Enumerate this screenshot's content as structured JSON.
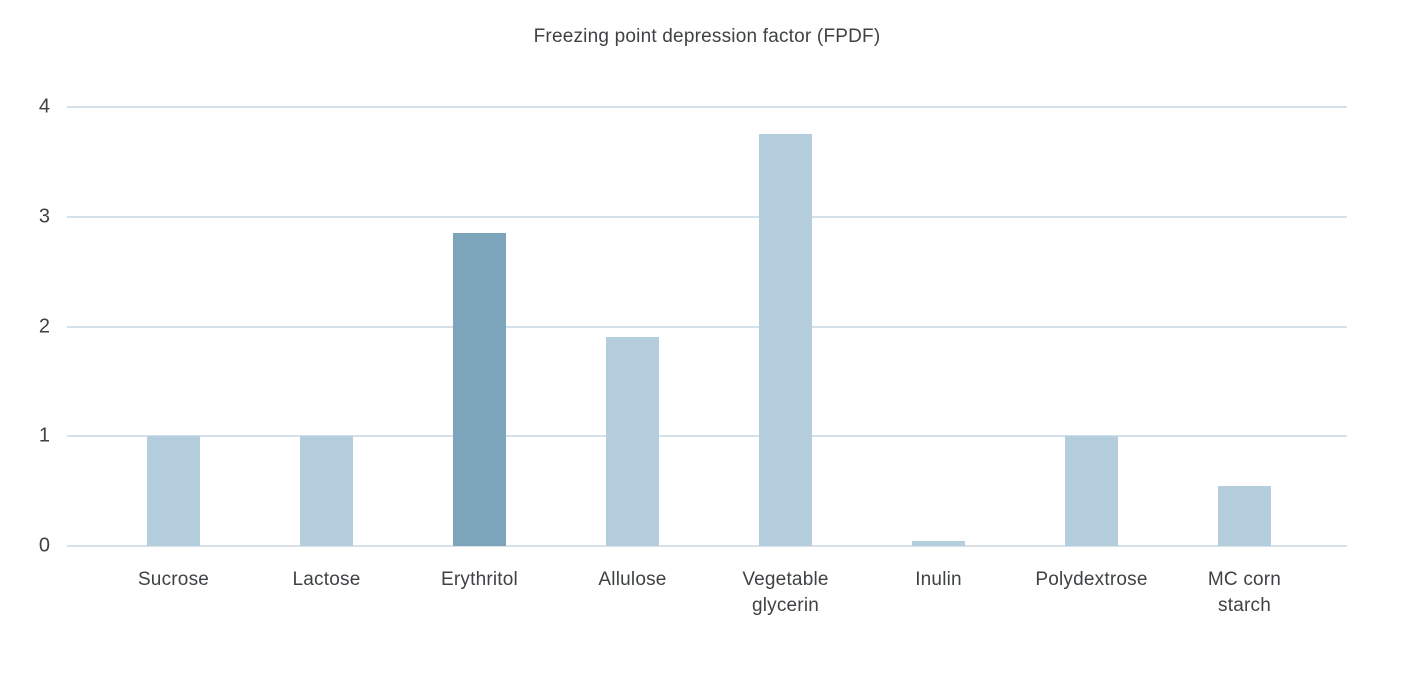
{
  "title": "Freezing point depression factor (FPDF)",
  "chart_data": {
    "type": "bar",
    "title": "Freezing point depression factor (FPDF)",
    "categories": [
      "Sucrose",
      "Lactose",
      "Erythritol",
      "Allulose",
      "Vegetable\nglycerin",
      "Inulin",
      "Polydextrose",
      "MC corn\nstarch"
    ],
    "values": [
      1,
      1,
      2.85,
      1.9,
      3.75,
      0.05,
      1,
      0.55
    ],
    "highlighted_category": "Erythritol",
    "highlight_index": 2,
    "xlabel": "",
    "ylabel": "",
    "ylim": [
      0,
      4
    ],
    "yticks": [
      0,
      1,
      2,
      3,
      4
    ],
    "grid": "horizontal",
    "legend": "none",
    "colors": {
      "bar": "#b5cedd",
      "bar_highlight": "#7ca4bb",
      "gridline": "#d4e0ea",
      "baseline": "#d8e1e8",
      "text": "#3f4245",
      "background": "#ffffff"
    }
  }
}
